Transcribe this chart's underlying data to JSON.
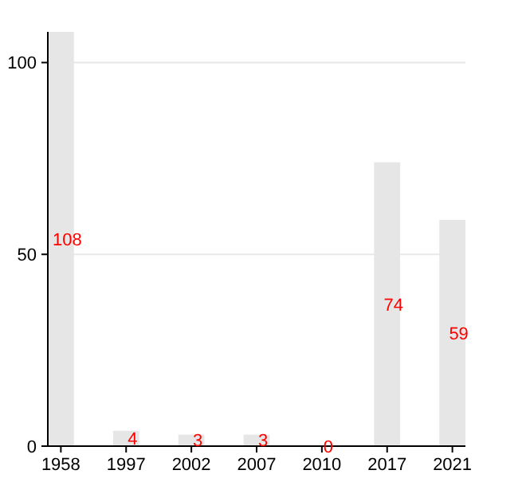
{
  "chart_data": {
    "type": "bar",
    "categories": [
      "1958",
      "1997",
      "2002",
      "2007",
      "2010",
      "2017",
      "2021"
    ],
    "values": [
      108,
      4,
      3,
      3,
      0,
      74,
      59
    ],
    "color": "#e6e6e6",
    "ylim": [
      0,
      108
    ],
    "yticks": [
      0,
      50,
      100
    ],
    "grid": "y",
    "data_labels": true
  }
}
